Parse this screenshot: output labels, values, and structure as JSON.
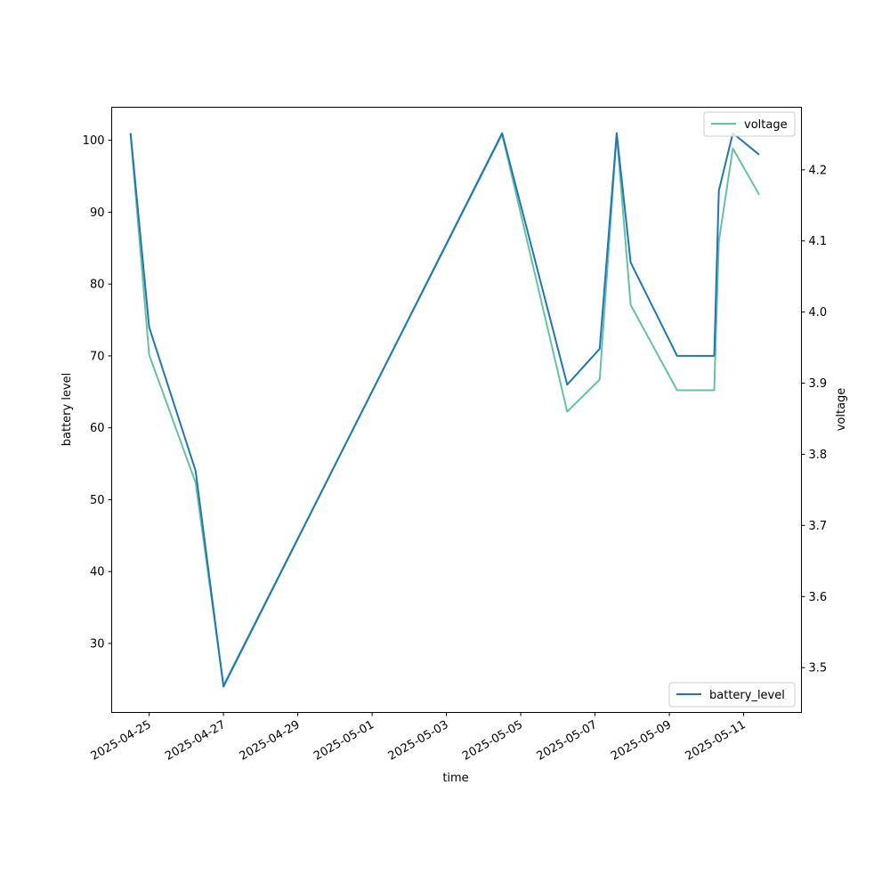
{
  "chart_data": {
    "type": "line",
    "xlabel": "time",
    "ylabel_left": "battery level",
    "ylabel_right": "voltage",
    "x_ticks": [
      "2025-04-25",
      "2025-04-27",
      "2025-04-29",
      "2025-05-01",
      "2025-05-03",
      "2025-05-05",
      "2025-05-07",
      "2025-05-09",
      "2025-05-11"
    ],
    "y_left_ticks": [
      30,
      40,
      50,
      60,
      70,
      80,
      90,
      100
    ],
    "y_right_ticks": [
      "3.5",
      "3.6",
      "3.7",
      "3.8",
      "3.9",
      "4.0",
      "4.1",
      "4.2"
    ],
    "y_left_range": [
      20.4,
      104.6
    ],
    "y_right_range": [
      3.437,
      4.288
    ],
    "x_range": [
      "2025-04-23T23:47",
      "2025-05-12T13:20"
    ],
    "grid": false,
    "series": [
      {
        "name": "battery_level",
        "axis": "left",
        "color": "#1f77b4",
        "legend": "bottom-right",
        "points": [
          [
            "2025-04-24T12:00",
            101
          ],
          [
            "2025-04-25T00:00",
            74
          ],
          [
            "2025-04-26T06:00",
            54
          ],
          [
            "2025-04-27T00:00",
            24
          ],
          [
            "2025-05-04T12:00",
            101
          ],
          [
            "2025-05-06T06:00",
            66
          ],
          [
            "2025-05-07T03:00",
            71
          ],
          [
            "2025-05-07T14:00",
            101
          ],
          [
            "2025-05-07T23:00",
            83
          ],
          [
            "2025-05-09T05:00",
            70
          ],
          [
            "2025-05-10T05:00",
            70
          ],
          [
            "2025-05-10T08:00",
            93
          ],
          [
            "2025-05-10T17:00",
            101
          ],
          [
            "2025-05-11T10:00",
            98
          ]
        ]
      },
      {
        "name": "voltage",
        "axis": "right",
        "color": "#66c2a5",
        "legend": "top-right",
        "points": [
          [
            "2025-04-24T12:00",
            4.25
          ],
          [
            "2025-04-25T00:00",
            3.94
          ],
          [
            "2025-04-26T06:00",
            3.76
          ],
          [
            "2025-04-27T00:00",
            3.475
          ],
          [
            "2025-05-04T12:00",
            4.25
          ],
          [
            "2025-05-06T06:00",
            3.86
          ],
          [
            "2025-05-07T03:00",
            3.905
          ],
          [
            "2025-05-07T14:00",
            4.25
          ],
          [
            "2025-05-07T23:00",
            4.01
          ],
          [
            "2025-05-09T05:00",
            3.89
          ],
          [
            "2025-05-10T05:00",
            3.89
          ],
          [
            "2025-05-10T08:00",
            4.1
          ],
          [
            "2025-05-10T17:00",
            4.23
          ],
          [
            "2025-05-11T10:00",
            4.165
          ]
        ]
      }
    ]
  }
}
